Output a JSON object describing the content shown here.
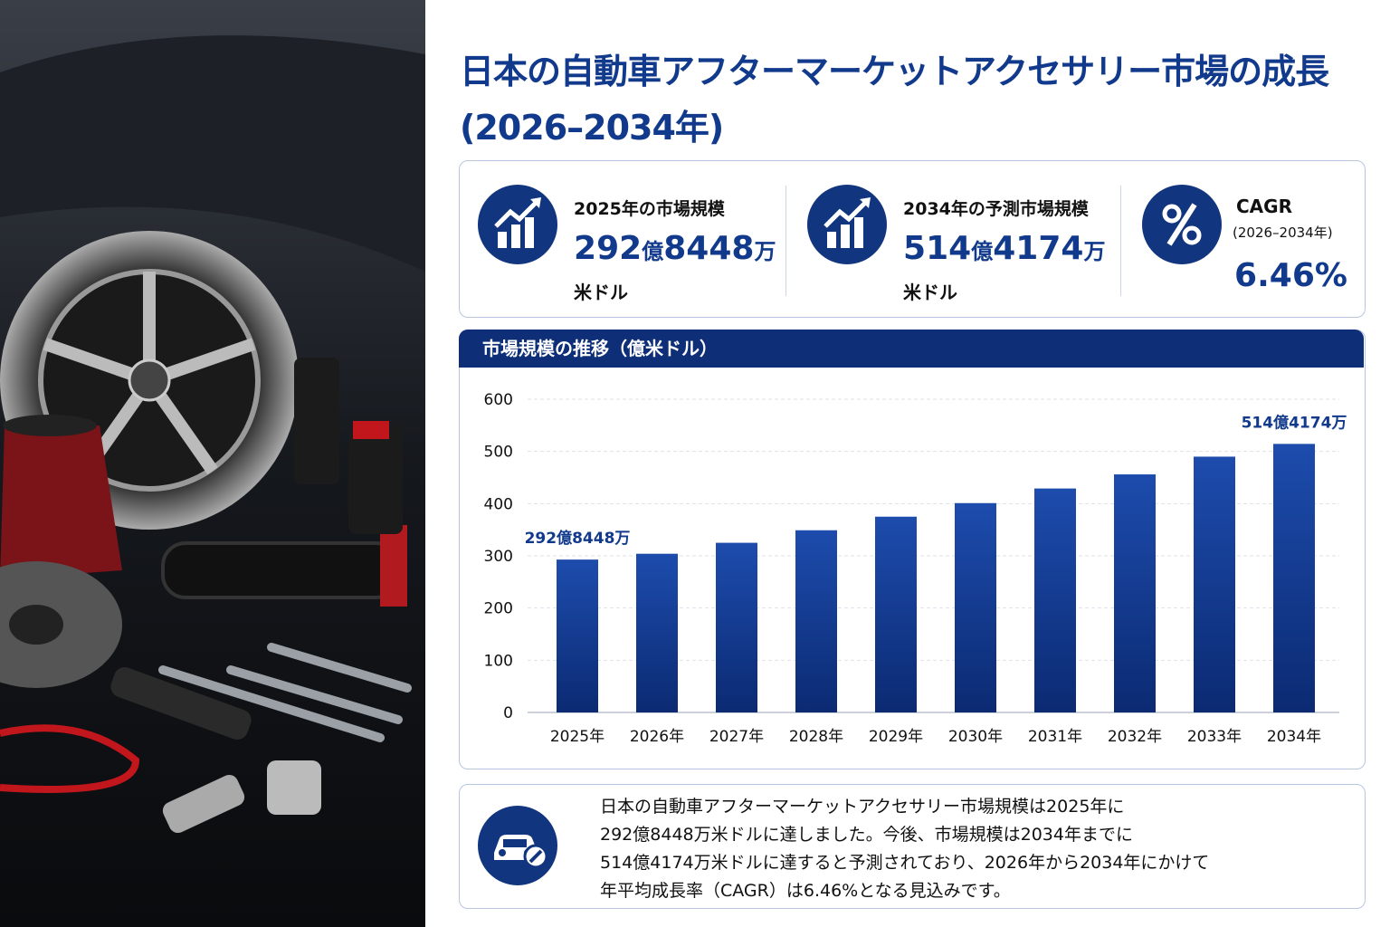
{
  "header": {
    "title_line1": "日本の自動車アフターマーケットアクセサリー市場の成長",
    "title_line2": "(2026–2034年)"
  },
  "stats": [
    {
      "label": "2025年の市場規模",
      "value": "292億8448万",
      "unit": "米ドル"
    },
    {
      "label": "2034年の予測市場規模",
      "value": "514億4174万",
      "unit": "米ドル"
    },
    {
      "label": "CAGR",
      "sublabel": "(2026–2034年)",
      "value": "6.46%"
    }
  ],
  "chart_data": {
    "type": "bar",
    "title": "市場規模の推移（億米ドル）",
    "categories": [
      "2025年",
      "2026年",
      "2027年",
      "2028年",
      "2029年",
      "2030年",
      "2031年",
      "2032年",
      "2033年",
      "2034年"
    ],
    "values": [
      292.8448,
      304,
      325,
      349,
      375,
      401,
      429,
      456,
      490,
      514.4174
    ],
    "value_labels": [
      "292億8448万",
      null,
      null,
      null,
      null,
      null,
      null,
      null,
      null,
      "514億4174万"
    ],
    "color": "#123c96",
    "ylim": [
      0,
      600
    ],
    "yticks": [
      0,
      100,
      200,
      300,
      400,
      500,
      600
    ],
    "grid": true
  },
  "summary": {
    "lines": [
      "日本の自動車アフターマーケットアクセサリー市場規模は2025年に",
      "292億8448万米ドルに達しました。今後、市場規模は2034年までに",
      "514億4174万米ドルに達すると予測されており、2026年から2034年にかけて",
      "年平均成長率（CAGR）は6.46%となる見込みです。"
    ]
  }
}
